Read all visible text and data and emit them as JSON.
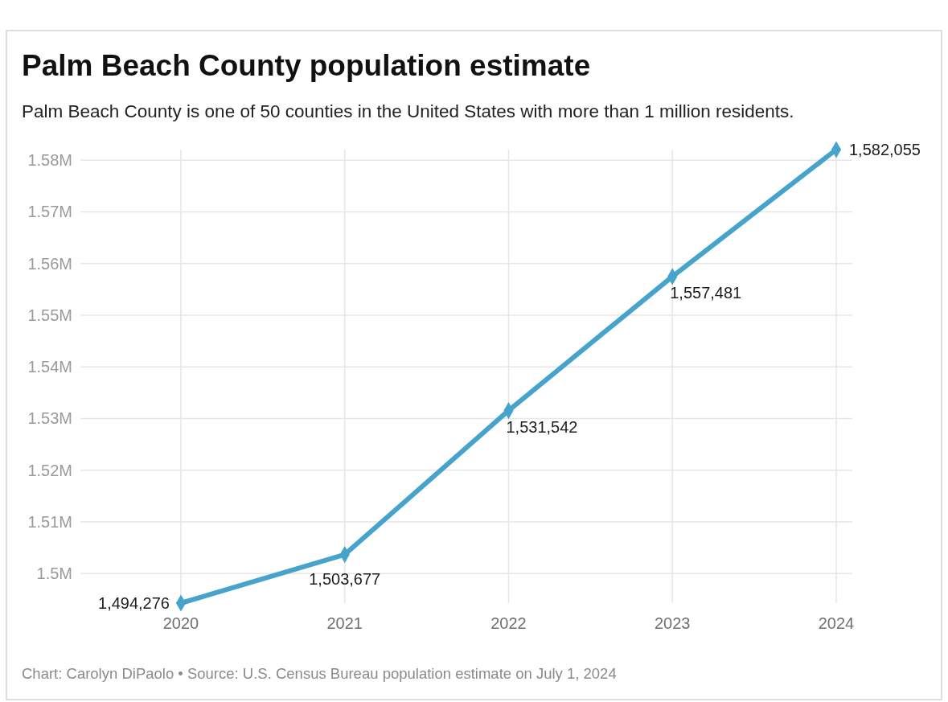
{
  "chart_data": {
    "type": "line",
    "title": "Palm Beach County population estimate",
    "subtitle": "Palm Beach County is one of 50 counties in the United States with more than 1 million residents.",
    "categories": [
      "2020",
      "2021",
      "2022",
      "2023",
      "2024"
    ],
    "series": [
      {
        "color": "#46a3cb",
        "values": [
          1494276,
          1503677,
          1531542,
          1557481,
          1582055
        ],
        "value_labels": [
          "1,494,276",
          "1,503,677",
          "1,531,542",
          "1,557,481",
          "1,582,055"
        ]
      }
    ],
    "ylim": [
      1494276,
      1582055
    ],
    "yticks": [
      {
        "value": 1500000,
        "label": "1.5M"
      },
      {
        "value": 1510000,
        "label": "1.51M"
      },
      {
        "value": 1520000,
        "label": "1.52M"
      },
      {
        "value": 1530000,
        "label": "1.53M"
      },
      {
        "value": 1540000,
        "label": "1.54M"
      },
      {
        "value": 1550000,
        "label": "1.55M"
      },
      {
        "value": 1560000,
        "label": "1.56M"
      },
      {
        "value": 1570000,
        "label": "1.57M"
      },
      {
        "value": 1580000,
        "label": "1.58M"
      }
    ],
    "grid": true,
    "marker": "diamond",
    "line_style": "solid",
    "annotations": [
      "Chart: Carolyn DiPaolo • Source: U.S. Census Bureau population estimate on July 1, 2024"
    ]
  }
}
